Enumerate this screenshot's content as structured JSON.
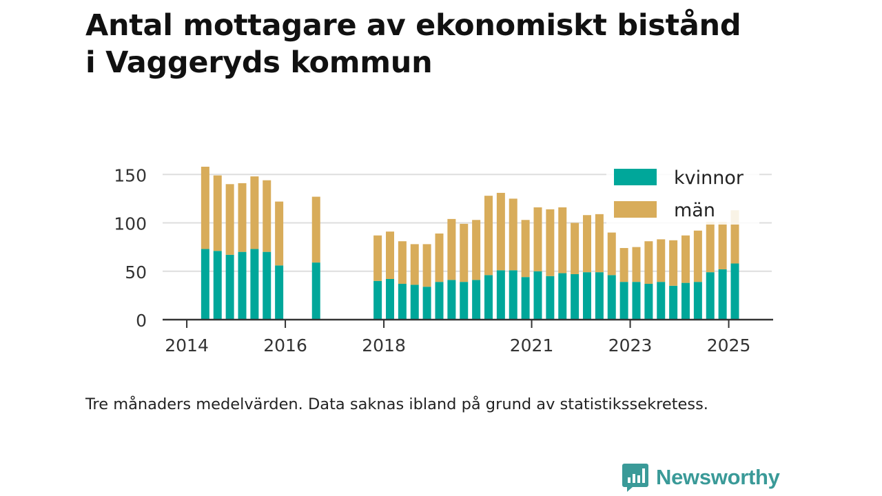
{
  "title": {
    "line1": "Antal mottagare av ekonomiskt bistånd",
    "line2": "i Vaggeryds kommun"
  },
  "caption": "Tre månaders medelvärden. Data saknas ibland på grund av statistikssekretess.",
  "brand": {
    "name": "Newsworthy",
    "color": "#3a9a98",
    "icon": "newsworthy-logo-icon"
  },
  "colors": {
    "kvinnor": "#00a79a",
    "man": "#d8ac5a",
    "grid": "#dedede",
    "axis": "#333333"
  },
  "chart_data": {
    "type": "bar",
    "stacked": true,
    "xlabel": "",
    "ylabel": "",
    "ylim": [
      0,
      160
    ],
    "y_ticks": [
      0,
      50,
      100,
      150
    ],
    "x_ticks": [
      {
        "label": "2014",
        "x": 2014.0
      },
      {
        "label": "2016",
        "x": 2016.0
      },
      {
        "label": "2018",
        "x": 2018.0
      },
      {
        "label": "2021",
        "x": 2021.0
      },
      {
        "label": "2023",
        "x": 2023.0
      },
      {
        "label": "2025",
        "x": 2025.0
      }
    ],
    "xlim": [
      2013.75,
      2025.75
    ],
    "grid": true,
    "legend_position": "top-right",
    "legend": [
      {
        "key": "kvinnor",
        "label": "kvinnor"
      },
      {
        "key": "man",
        "label": "män"
      }
    ],
    "series": [
      {
        "name": "kvinnor",
        "key": "kvinnor"
      },
      {
        "name": "män",
        "key": "man"
      }
    ],
    "bars": [
      {
        "x": 2014.25,
        "kvinnor": 73,
        "man": 85
      },
      {
        "x": 2014.5,
        "kvinnor": 71,
        "man": 78
      },
      {
        "x": 2014.75,
        "kvinnor": 67,
        "man": 73
      },
      {
        "x": 2015.0,
        "kvinnor": 70,
        "man": 71
      },
      {
        "x": 2015.25,
        "kvinnor": 73,
        "man": 75
      },
      {
        "x": 2015.5,
        "kvinnor": 70,
        "man": 74
      },
      {
        "x": 2015.75,
        "kvinnor": 56,
        "man": 66
      },
      {
        "x": 2016.5,
        "kvinnor": 59,
        "man": 68
      },
      {
        "x": 2017.75,
        "kvinnor": 40,
        "man": 47
      },
      {
        "x": 2018.0,
        "kvinnor": 42,
        "man": 49
      },
      {
        "x": 2018.25,
        "kvinnor": 37,
        "man": 44
      },
      {
        "x": 2018.5,
        "kvinnor": 36,
        "man": 42
      },
      {
        "x": 2018.75,
        "kvinnor": 34,
        "man": 44
      },
      {
        "x": 2019.0,
        "kvinnor": 39,
        "man": 50
      },
      {
        "x": 2019.25,
        "kvinnor": 41,
        "man": 63
      },
      {
        "x": 2019.5,
        "kvinnor": 39,
        "man": 60
      },
      {
        "x": 2019.75,
        "kvinnor": 41,
        "man": 62
      },
      {
        "x": 2020.0,
        "kvinnor": 46,
        "man": 82
      },
      {
        "x": 2020.25,
        "kvinnor": 51,
        "man": 80
      },
      {
        "x": 2020.5,
        "kvinnor": 51,
        "man": 74
      },
      {
        "x": 2020.75,
        "kvinnor": 44,
        "man": 59
      },
      {
        "x": 2021.0,
        "kvinnor": 50,
        "man": 66
      },
      {
        "x": 2021.25,
        "kvinnor": 45,
        "man": 69
      },
      {
        "x": 2021.5,
        "kvinnor": 48,
        "man": 68
      },
      {
        "x": 2021.75,
        "kvinnor": 47,
        "man": 53
      },
      {
        "x": 2022.0,
        "kvinnor": 49,
        "man": 59
      },
      {
        "x": 2022.25,
        "kvinnor": 49,
        "man": 60
      },
      {
        "x": 2022.5,
        "kvinnor": 46,
        "man": 44
      },
      {
        "x": 2022.75,
        "kvinnor": 39,
        "man": 35
      },
      {
        "x": 2023.0,
        "kvinnor": 39,
        "man": 36
      },
      {
        "x": 2023.25,
        "kvinnor": 37,
        "man": 44
      },
      {
        "x": 2023.5,
        "kvinnor": 39,
        "man": 44
      },
      {
        "x": 2023.75,
        "kvinnor": 35,
        "man": 47
      },
      {
        "x": 2024.0,
        "kvinnor": 38,
        "man": 49
      },
      {
        "x": 2024.25,
        "kvinnor": 39,
        "man": 53
      },
      {
        "x": 2024.5,
        "kvinnor": 49,
        "man": 52
      },
      {
        "x": 2024.75,
        "kvinnor": 52,
        "man": 49
      },
      {
        "x": 2025.0,
        "kvinnor": 58,
        "man": 55
      }
    ]
  }
}
